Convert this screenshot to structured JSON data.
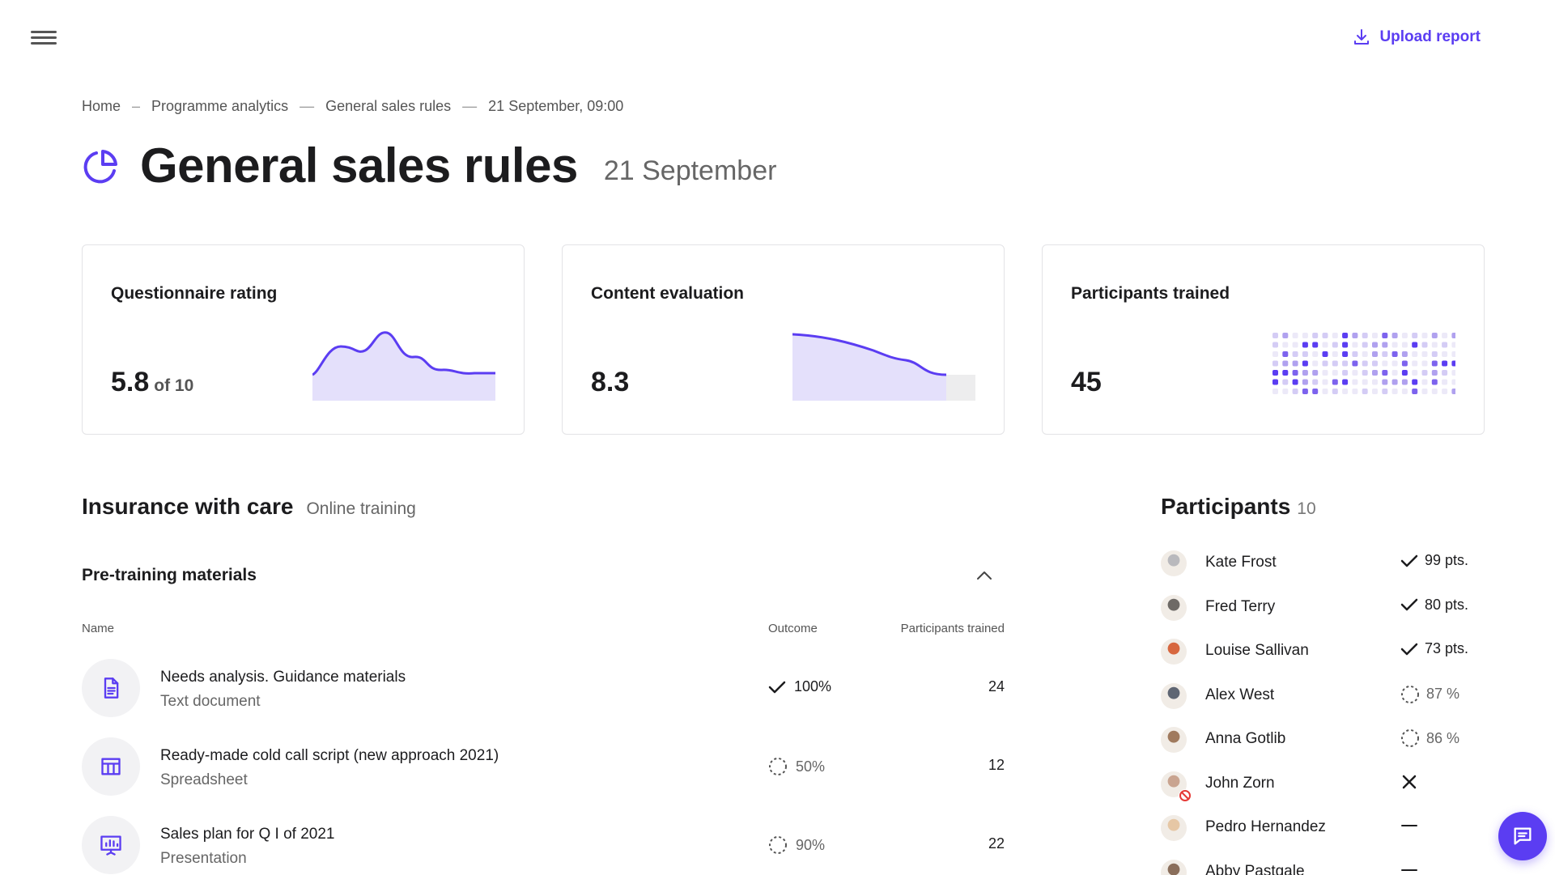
{
  "header": {
    "upload_label": "Upload report",
    "accent": "#5b3df2"
  },
  "breadcrumb": {
    "items": [
      "Home",
      "Programme analytics",
      "General sales rules",
      "21 September, 09:00"
    ],
    "separators": [
      "–",
      "—",
      "—"
    ]
  },
  "page": {
    "title": "General sales rules",
    "subtitle": "21 September",
    "icon": "pie-chart-icon"
  },
  "cards": [
    {
      "title": "Questionnaire rating",
      "value": "5.8",
      "suffix": "of 10",
      "chart": "area-sparkline"
    },
    {
      "title": "Content evaluation",
      "value": "8.3",
      "chart": "area-declining"
    },
    {
      "title": "Participants trained",
      "value": "45",
      "chart": "dot-matrix"
    }
  ],
  "course": {
    "title": "Insurance with care",
    "subtitle": "Online training"
  },
  "materials": {
    "title": "Pre-training materials",
    "columns": {
      "name": "Name",
      "outcome": "Outcome",
      "trained": "Participants trained"
    },
    "rows": [
      {
        "name": "Needs analysis. Guidance materials",
        "type": "Text document",
        "outcome": "100%",
        "status": "done",
        "trained": "24",
        "icon": "document-icon"
      },
      {
        "name": "Ready-made cold call script (new approach 2021)",
        "type": "Spreadsheet",
        "outcome": "50%",
        "status": "pending",
        "trained": "12",
        "icon": "table-icon"
      },
      {
        "name": "Sales plan for Q I of 2021",
        "type": "Presentation",
        "outcome": "90%",
        "status": "pending",
        "trained": "22",
        "icon": "presentation-icon"
      }
    ]
  },
  "participants": {
    "title": "Participants",
    "count": "10",
    "list": [
      {
        "name": "Kate Frost",
        "status": "done",
        "value": "99 pts.",
        "avatar_color": "#b9b9bd"
      },
      {
        "name": "Fred Terry",
        "status": "done",
        "value": "80 pts.",
        "avatar_color": "#6e6a66"
      },
      {
        "name": "Louise Sallivan",
        "status": "done",
        "value": "73 pts.",
        "avatar_color": "#d7673f"
      },
      {
        "name": "Alex West",
        "status": "pending",
        "value": "87 %",
        "avatar_color": "#5f6673"
      },
      {
        "name": "Anna Gotlib",
        "status": "pending",
        "value": "86 %",
        "avatar_color": "#a07a5e"
      },
      {
        "name": "John Zorn",
        "status": "failed",
        "value": "",
        "avatar_color": "#c9a490"
      },
      {
        "name": "Pedro Hernandez",
        "status": "none",
        "value": "",
        "avatar_color": "#e6c7a5"
      },
      {
        "name": "Abby Pastgale",
        "status": "none",
        "value": "",
        "avatar_color": "#8a6e5b"
      }
    ]
  }
}
